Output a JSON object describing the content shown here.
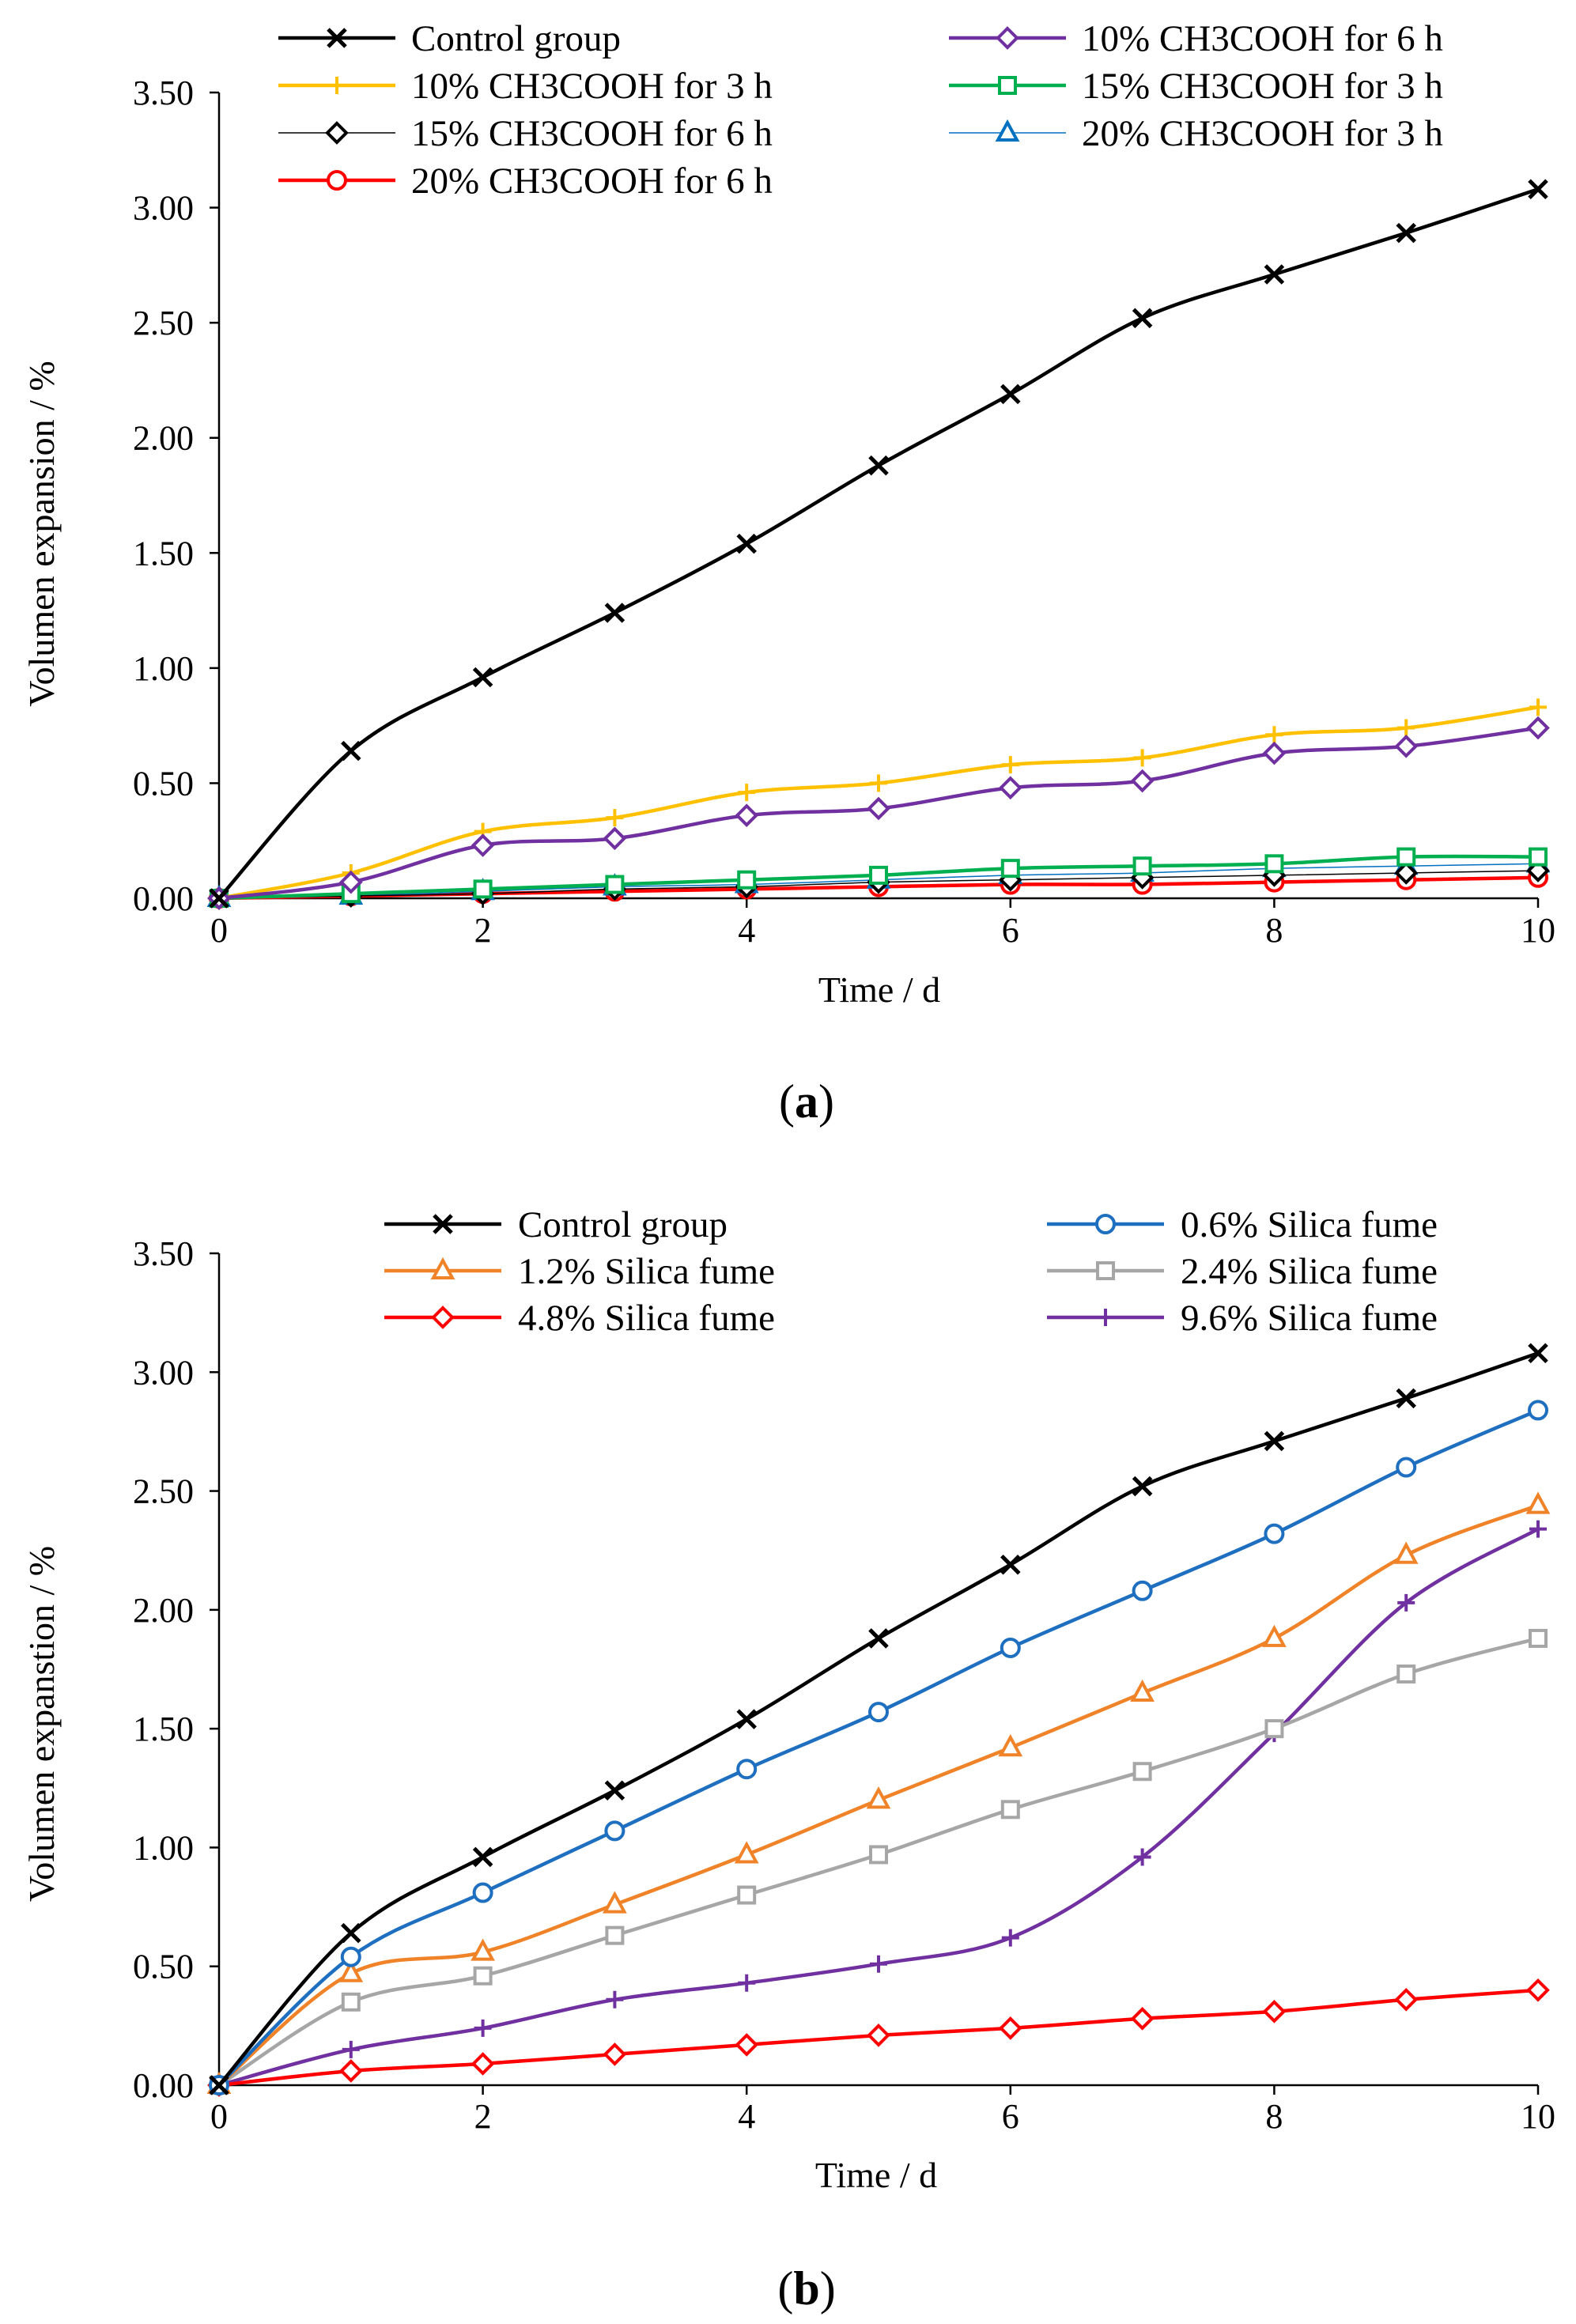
{
  "figure": {
    "panels": [
      "a",
      "b"
    ]
  },
  "chart_data": [
    {
      "panel_label": "a",
      "type": "line",
      "xlabel": "Time / d",
      "ylabel": "Volumen expansion / %",
      "xlim": [
        0,
        10
      ],
      "ylim": [
        0,
        3.5
      ],
      "x_ticks": [
        "0",
        "2",
        "4",
        "6",
        "8",
        "10"
      ],
      "y_ticks": [
        "0.00",
        "0.50",
        "1.00",
        "1.50",
        "2.00",
        "2.50",
        "3.00",
        "3.50"
      ],
      "grid": false,
      "legend_position": "top",
      "x": [
        0,
        1,
        2,
        3,
        4,
        5,
        6,
        7,
        8,
        9,
        10
      ],
      "series": [
        {
          "name": "Control group",
          "color": "#000000",
          "marker": "x",
          "width": 4.5,
          "values": [
            0,
            0.64,
            0.96,
            1.24,
            1.54,
            1.88,
            2.19,
            2.52,
            2.71,
            2.89,
            3.08
          ]
        },
        {
          "name": "10% CH3COOH for 6 h",
          "color": "#7030A0",
          "marker": "diamond",
          "width": 4.5,
          "values": [
            0,
            0.07,
            0.23,
            0.26,
            0.36,
            0.39,
            0.48,
            0.51,
            0.63,
            0.66,
            0.74
          ]
        },
        {
          "name": "10% CH3COOH for 3 h",
          "color": "#FFC000",
          "marker": "plus",
          "width": 4.5,
          "values": [
            0,
            0.11,
            0.29,
            0.35,
            0.46,
            0.5,
            0.58,
            0.61,
            0.71,
            0.74,
            0.83
          ]
        },
        {
          "name": "15% CH3COOH for 3 h",
          "color": "#00B050",
          "marker": "square",
          "width": 4.5,
          "values": [
            0,
            0.02,
            0.04,
            0.06,
            0.08,
            0.1,
            0.13,
            0.14,
            0.15,
            0.18,
            0.18
          ]
        },
        {
          "name": "15% CH3COOH for 6 h",
          "color": "#000000",
          "marker": "diamond",
          "width": 1.5,
          "values": [
            0,
            0.01,
            0.02,
            0.04,
            0.05,
            0.07,
            0.08,
            0.09,
            0.1,
            0.11,
            0.12
          ]
        },
        {
          "name": "20% CH3COOH for 3 h",
          "color": "#0070C0",
          "marker": "triangle",
          "width": 1.5,
          "values": [
            0,
            0.01,
            0.03,
            0.05,
            0.06,
            0.08,
            0.1,
            0.11,
            0.13,
            0.14,
            0.15
          ]
        },
        {
          "name": "20% CH3COOH for 6 h",
          "color": "#FF0000",
          "marker": "circle",
          "width": 4.5,
          "values": [
            0,
            0.01,
            0.02,
            0.03,
            0.04,
            0.05,
            0.06,
            0.06,
            0.07,
            0.08,
            0.09
          ]
        }
      ]
    },
    {
      "panel_label": "b",
      "type": "line",
      "xlabel": "Time / d",
      "ylabel": "Volumen expanstion / %",
      "xlim": [
        0,
        10
      ],
      "ylim": [
        0,
        3.5
      ],
      "x_ticks": [
        "0",
        "2",
        "4",
        "6",
        "8",
        "10"
      ],
      "y_ticks": [
        "0.00",
        "0.50",
        "1.00",
        "1.50",
        "2.00",
        "2.50",
        "3.00",
        "3.50"
      ],
      "grid": false,
      "legend_position": "top",
      "x": [
        0,
        1,
        2,
        3,
        4,
        5,
        6,
        7,
        8,
        9,
        10
      ],
      "series": [
        {
          "name": "Control group",
          "color": "#000000",
          "marker": "x",
          "width": 4.5,
          "values": [
            0,
            0.64,
            0.96,
            1.24,
            1.54,
            1.88,
            2.19,
            2.52,
            2.71,
            2.89,
            3.08
          ]
        },
        {
          "name": "0.6% Silica fume",
          "color": "#1F6FC0",
          "marker": "circle",
          "width": 4.5,
          "values": [
            0,
            0.54,
            0.81,
            1.07,
            1.33,
            1.57,
            1.84,
            2.08,
            2.32,
            2.6,
            2.84
          ]
        },
        {
          "name": "1.2% Silica fume",
          "color": "#F08228",
          "marker": "triangle",
          "width": 4.5,
          "values": [
            0,
            0.47,
            0.56,
            0.76,
            0.97,
            1.2,
            1.42,
            1.65,
            1.88,
            2.23,
            2.44
          ]
        },
        {
          "name": "2.4% Silica fume",
          "color": "#A6A6A6",
          "marker": "square",
          "width": 4.5,
          "values": [
            0,
            0.35,
            0.46,
            0.63,
            0.8,
            0.97,
            1.16,
            1.32,
            1.5,
            1.73,
            1.88
          ]
        },
        {
          "name": "4.8% Silica fume",
          "color": "#FF0000",
          "marker": "diamond",
          "width": 4.5,
          "values": [
            0,
            0.06,
            0.09,
            0.13,
            0.17,
            0.21,
            0.24,
            0.28,
            0.31,
            0.36,
            0.4
          ]
        },
        {
          "name": "9.6% Silica fume",
          "color": "#7030A0",
          "marker": "plus",
          "width": 4.5,
          "values": [
            0,
            0.15,
            0.24,
            0.36,
            0.43,
            0.51,
            0.62,
            0.96,
            1.48,
            2.03,
            2.34
          ]
        }
      ]
    }
  ]
}
